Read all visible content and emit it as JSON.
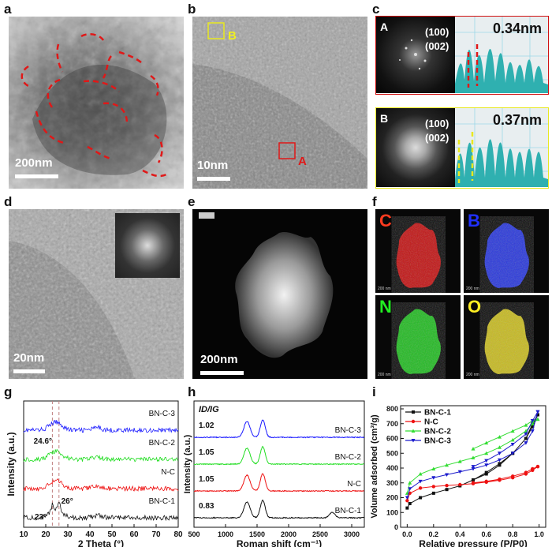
{
  "panels": {
    "a": {
      "label": "a",
      "scale": "200nm"
    },
    "b": {
      "label": "b",
      "scale": "10nm",
      "box_a": "A",
      "box_b": "B"
    },
    "c": {
      "label": "c",
      "top": {
        "tag": "A",
        "plane1": "(100)",
        "plane2": "(002)",
        "spacing": "0.34nm"
      },
      "bottom": {
        "tag": "B",
        "plane1": "(100)",
        "plane2": "(002)",
        "spacing": "0.37nm"
      }
    },
    "d": {
      "label": "d",
      "scale": "20nm"
    },
    "e": {
      "label": "e",
      "scale": "200nm"
    },
    "f": {
      "label": "f",
      "elements": [
        {
          "symbol": "C",
          "color": "#ff3b1f",
          "map": "#e01010",
          "scale": "200 nm"
        },
        {
          "symbol": "B",
          "color": "#2030ff",
          "map": "#2a3cff",
          "scale": "200 nm"
        },
        {
          "symbol": "N",
          "color": "#22ee22",
          "map": "#22d822",
          "scale": "200 nm"
        },
        {
          "symbol": "O",
          "color": "#ffee22",
          "map": "#e8d820",
          "scale": "200 nm"
        }
      ]
    },
    "g": {
      "label": "g"
    },
    "h": {
      "label": "h"
    },
    "i": {
      "label": "i"
    }
  },
  "chart_data": [
    {
      "id": "g",
      "type": "line",
      "title": "",
      "xlabel": "2 Theta (°)",
      "ylabel": "Intensity (a.u.)",
      "xlim": [
        10,
        80
      ],
      "xticks": [
        "10",
        "20",
        "30",
        "40",
        "50",
        "60",
        "70",
        "80"
      ],
      "series": [
        {
          "name": "BN-C-3",
          "color": "#1a1aff",
          "offset": 3
        },
        {
          "name": "BN-C-2",
          "color": "#22dd22",
          "offset": 2
        },
        {
          "name": "N-C",
          "color": "#ee1111",
          "offset": 1
        },
        {
          "name": "BN-C-1",
          "color": "#111111",
          "offset": 0
        }
      ],
      "annotations": [
        "24.6°",
        "23°",
        "26°"
      ],
      "reference_lines": [
        23,
        26
      ]
    },
    {
      "id": "h",
      "type": "line",
      "title": "ID/IG",
      "xlabel": "Roman shift (cm⁻¹)",
      "ylabel": "Intensity (a.u.)",
      "xlim": [
        500,
        3200
      ],
      "xticks": [
        "500",
        "1000",
        "1500",
        "2000",
        "2500",
        "3000"
      ],
      "series": [
        {
          "name": "BN-C-3",
          "color": "#1a1aff",
          "ratio": "1.02"
        },
        {
          "name": "BN-C-2",
          "color": "#22dd22",
          "ratio": "1.05"
        },
        {
          "name": "N-C",
          "color": "#ee1111",
          "ratio": "1.05"
        },
        {
          "name": "BN-C-1",
          "color": "#111111",
          "ratio": "0.83"
        }
      ]
    },
    {
      "id": "i",
      "type": "line",
      "title": "",
      "xlabel": "Relative pressure (P/P0)",
      "ylabel": "Volume adsorbed (cm³/g)",
      "xlim": [
        0.0,
        1.0
      ],
      "ylim": [
        0,
        800
      ],
      "xticks": [
        "0.0",
        "0.2",
        "0.4",
        "0.6",
        "0.8",
        "1.0"
      ],
      "yticks": [
        "0",
        "100",
        "200",
        "300",
        "400",
        "500",
        "600",
        "700",
        "800"
      ],
      "legend": [
        {
          "name": "BN-C-1",
          "color": "#111111",
          "marker": "square"
        },
        {
          "name": "N-C",
          "color": "#ee1111",
          "marker": "circle"
        },
        {
          "name": "BN-C-2",
          "color": "#33dd33",
          "marker": "triangle"
        },
        {
          "name": "BN-C-3",
          "color": "#1a1acc",
          "marker": "triangle-down"
        }
      ],
      "series": [
        {
          "name": "BN-C-1",
          "x": [
            0.0,
            0.02,
            0.1,
            0.2,
            0.3,
            0.4,
            0.5,
            0.6,
            0.7,
            0.8,
            0.9,
            0.95,
            0.99
          ],
          "y": [
            130,
            160,
            200,
            230,
            255,
            280,
            320,
            370,
            430,
            500,
            600,
            680,
            760
          ],
          "desorb": [
            760,
            700,
            600,
            500,
            420,
            360,
            320
          ]
        },
        {
          "name": "N-C",
          "x": [
            0.0,
            0.02,
            0.1,
            0.2,
            0.3,
            0.4,
            0.5,
            0.6,
            0.7,
            0.8,
            0.9,
            0.95,
            0.99
          ],
          "y": [
            180,
            230,
            265,
            275,
            282,
            288,
            295,
            305,
            318,
            335,
            360,
            385,
            410
          ],
          "desorb": [
            410,
            395,
            370,
            345,
            325,
            310,
            300
          ]
        },
        {
          "name": "BN-C-2",
          "x": [
            0.0,
            0.02,
            0.1,
            0.2,
            0.3,
            0.4,
            0.5,
            0.6,
            0.7,
            0.8,
            0.9,
            0.95,
            0.99
          ],
          "y": [
            230,
            300,
            360,
            395,
            420,
            445,
            470,
            500,
            540,
            590,
            650,
            700,
            730
          ],
          "desorb": [
            730,
            720,
            690,
            650,
            610,
            570,
            530
          ]
        },
        {
          "name": "BN-C-3",
          "x": [
            0.0,
            0.02,
            0.1,
            0.2,
            0.3,
            0.4,
            0.5,
            0.6,
            0.7,
            0.8,
            0.9,
            0.95,
            0.99
          ],
          "y": [
            200,
            260,
            310,
            335,
            355,
            375,
            395,
            420,
            455,
            500,
            570,
            650,
            780
          ],
          "desorb": [
            780,
            720,
            630,
            560,
            500,
            450,
            410
          ]
        }
      ]
    }
  ]
}
